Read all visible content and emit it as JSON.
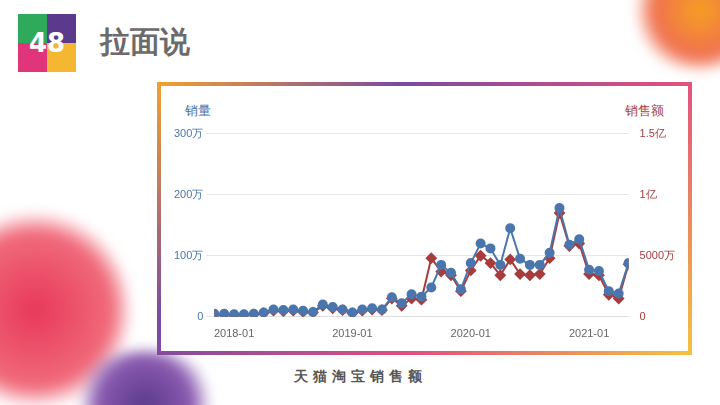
{
  "slide": {
    "number": "48",
    "title": "拉面说",
    "caption": "天猫淘宝销售额"
  },
  "chart_data": {
    "type": "line",
    "y_label": "销量",
    "y2_label": "销售额",
    "categories": [
      null,
      null,
      "2018-01",
      null,
      null,
      null,
      null,
      null,
      null,
      null,
      null,
      null,
      null,
      null,
      "2019-01",
      null,
      null,
      null,
      null,
      null,
      null,
      null,
      null,
      null,
      null,
      null,
      "2020-01",
      null,
      null,
      null,
      null,
      null,
      null,
      null,
      null,
      null,
      null,
      null,
      "2021-01",
      null,
      null,
      null,
      null
    ],
    "series": [
      {
        "name": "销量",
        "color": "#4a76ad",
        "marker": "circle",
        "line_style": "solid",
        "axis": "y",
        "values": [
          5,
          5,
          4,
          4,
          5,
          7,
          12,
          11,
          12,
          10,
          8,
          20,
          16,
          12,
          7,
          12,
          14,
          12,
          32,
          22,
          37,
          33,
          48,
          85,
          72,
          45,
          88,
          120,
          112,
          85,
          145,
          95,
          85,
          85,
          105,
          178,
          118,
          127,
          77,
          75,
          42,
          38,
          88
        ]
      },
      {
        "name": "销售额",
        "color": "#a83c3c",
        "marker": "diamond",
        "line_style": "solid",
        "axis": "y2",
        "values": [
          150,
          150,
          120,
          130,
          200,
          300,
          500,
          450,
          500,
          400,
          350,
          900,
          700,
          550,
          300,
          500,
          600,
          550,
          1500,
          900,
          1500,
          1400,
          4800,
          3700,
          3400,
          2100,
          3800,
          5000,
          4400,
          3400,
          4700,
          3500,
          3400,
          3500,
          4800,
          8500,
          5800,
          6000,
          3500,
          3400,
          1800,
          1500,
          4300
        ]
      }
    ],
    "ylim": [
      0,
      300
    ],
    "yticks": [
      0,
      {
        "value": 100,
        "label": "100万"
      },
      {
        "value": 200,
        "label": "200万"
      },
      {
        "value": 300,
        "label": "300万"
      }
    ],
    "y2lim": [
      0,
      15000
    ],
    "y2ticks": [
      0,
      {
        "value": 5000,
        "label": "5000万"
      },
      {
        "value": 10000,
        "label": "1亿"
      },
      {
        "value": 15000,
        "label": "1.5亿"
      }
    ],
    "grid": true,
    "legend": "none"
  }
}
